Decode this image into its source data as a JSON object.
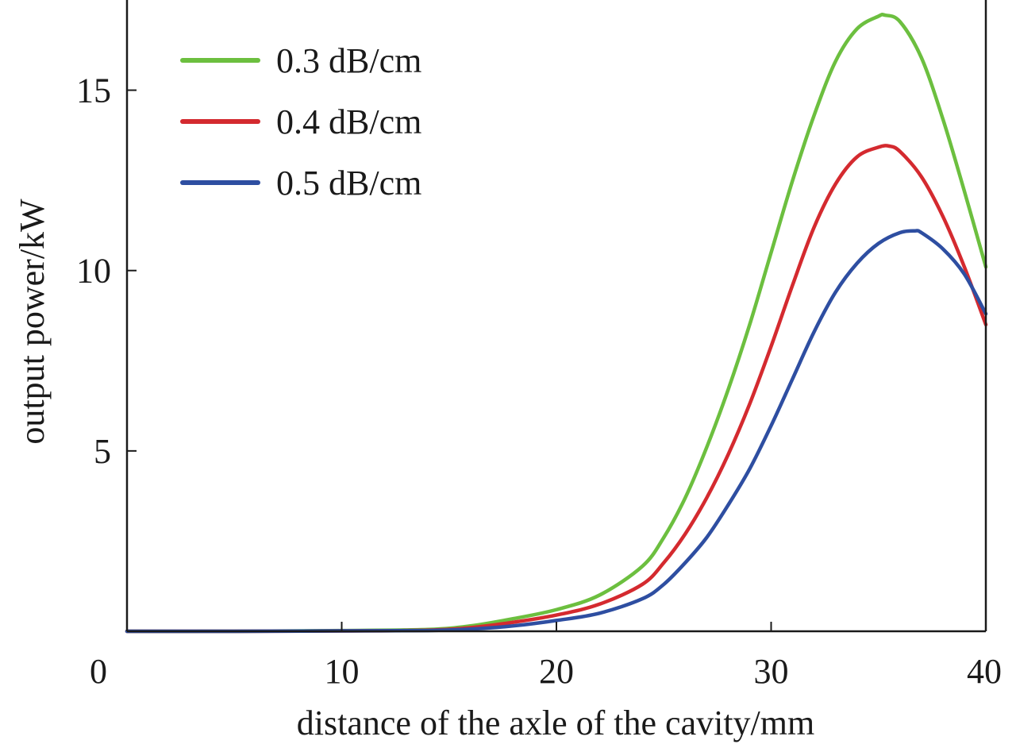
{
  "chart_data": {
    "type": "line",
    "title": "",
    "xlabel": "distance of the axle of the cavity/mm",
    "ylabel": "output power/kW",
    "xlim": [
      0,
      40
    ],
    "ylim": [
      0,
      17.5
    ],
    "xticks": [
      0,
      10,
      20,
      30,
      40
    ],
    "xtick_labels": [
      "0",
      "10",
      "20",
      "30",
      "40"
    ],
    "yticks": [
      5,
      10,
      15
    ],
    "ytick_labels": [
      "5",
      "10",
      "15"
    ],
    "grid": false,
    "legend_position": "top-left",
    "series": [
      {
        "name": "0.3 dB/cm",
        "color": "#6cbf3f",
        "x": [
          0,
          5,
          10,
          14,
          16,
          18,
          20,
          22,
          24,
          25,
          26,
          27,
          28,
          29,
          30,
          31,
          32,
          33,
          34,
          35,
          35.3,
          36,
          37,
          38,
          39,
          40
        ],
        "y": [
          0,
          0,
          0.02,
          0.05,
          0.15,
          0.35,
          0.6,
          1.0,
          1.8,
          2.6,
          3.7,
          5.1,
          6.7,
          8.5,
          10.5,
          12.5,
          14.3,
          15.8,
          16.7,
          17.05,
          17.08,
          16.9,
          15.9,
          14.2,
          12.2,
          10.1
        ]
      },
      {
        "name": "0.4 dB/cm",
        "color": "#d42a2f",
        "x": [
          0,
          5,
          10,
          14,
          16,
          18,
          20,
          22,
          24,
          25,
          26,
          27,
          28,
          29,
          30,
          31,
          32,
          33,
          34,
          35,
          35.5,
          36,
          37,
          38,
          39,
          40
        ],
        "y": [
          0,
          0,
          0.01,
          0.03,
          0.1,
          0.25,
          0.45,
          0.75,
          1.3,
          1.9,
          2.7,
          3.7,
          4.9,
          6.3,
          7.9,
          9.6,
          11.2,
          12.4,
          13.15,
          13.42,
          13.45,
          13.3,
          12.6,
          11.5,
          10.1,
          8.5
        ]
      },
      {
        "name": "0.5 dB/cm",
        "color": "#2e4ea1",
        "x": [
          0,
          5,
          10,
          14,
          16,
          18,
          20,
          22,
          24,
          25,
          26,
          27,
          28,
          29,
          30,
          31,
          32,
          33,
          34,
          35,
          36,
          36.7,
          37,
          38,
          39,
          40
        ],
        "y": [
          0,
          0,
          0.01,
          0.02,
          0.06,
          0.15,
          0.3,
          0.5,
          0.9,
          1.3,
          1.9,
          2.6,
          3.5,
          4.5,
          5.7,
          7.0,
          8.3,
          9.4,
          10.2,
          10.75,
          11.05,
          11.1,
          11.05,
          10.6,
          9.9,
          8.8
        ]
      }
    ]
  }
}
